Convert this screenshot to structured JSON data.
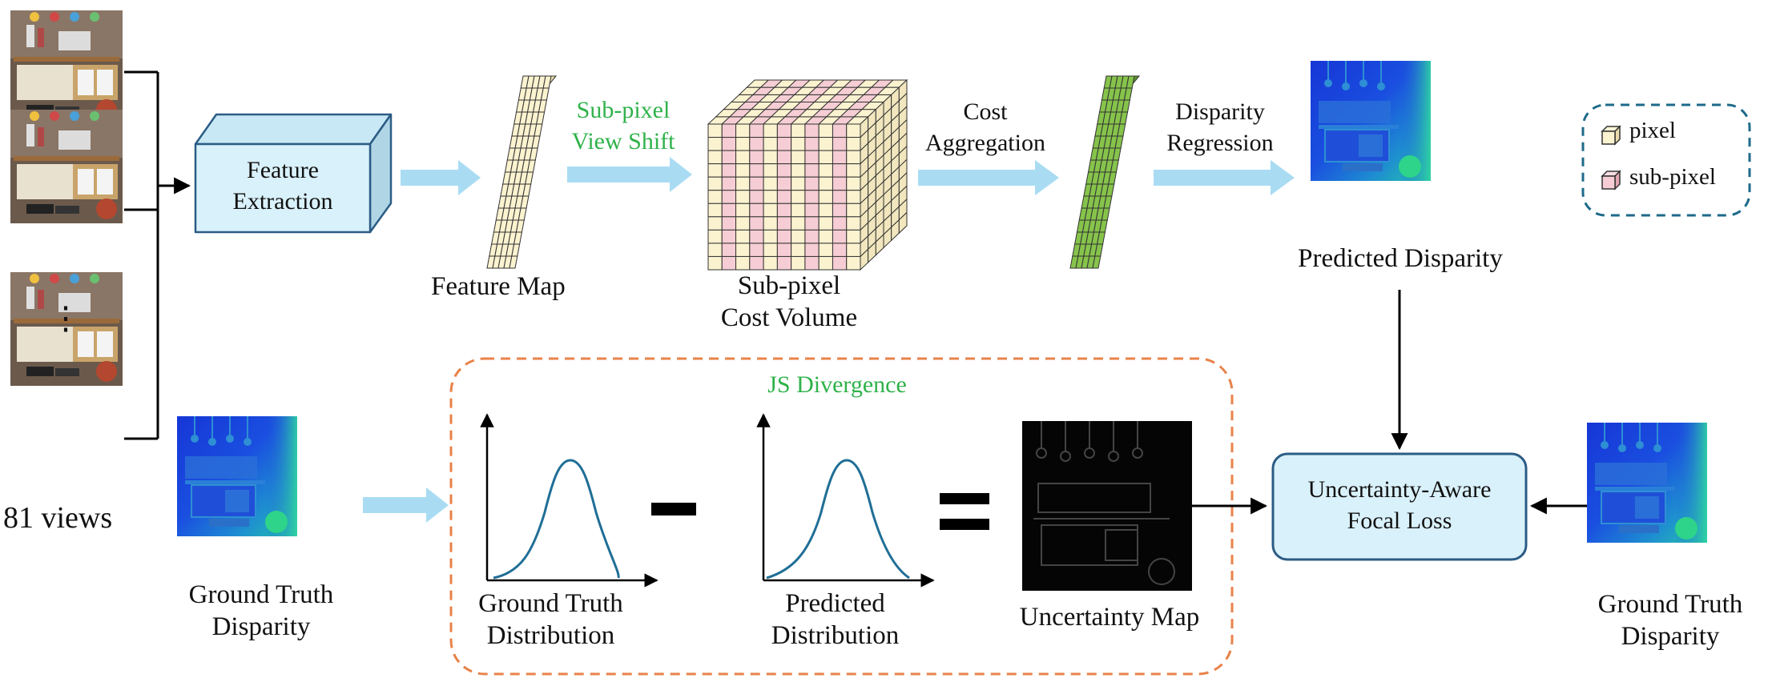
{
  "colors": {
    "arrow_light_blue": "#a9dcf3",
    "box_fill": "#d9f1fa",
    "box_stroke": "#2b5c85",
    "grid_cream": "#fbf2cf",
    "grid_pink": "#f6cdd4",
    "grid_green": "#86c34b",
    "curve_blue": "#1f6e96",
    "annotation_green": "#2fb24a",
    "dashed_orange": "#e8834a",
    "dashed_teal": "#1e6a8a"
  },
  "inputs": {
    "views_label": "81 views",
    "ellipsis": "⋮",
    "thumbnail_icon": "scene-photo-icon"
  },
  "pipeline": {
    "feature_extraction": "Feature\nExtraction",
    "feature_map": "Feature Map",
    "view_shift": "Sub-pixel\nView Shift",
    "cost_volume": "Sub-pixel\nCost Volume",
    "cost_aggregation": "Cost\nAggregation",
    "disparity_regression": "Disparity\nRegression",
    "predicted_disparity": "Predicted Disparity"
  },
  "legend": {
    "pixel": "pixel",
    "sub_pixel": "sub-pixel"
  },
  "loss": {
    "gt_disparity_left": "Ground Truth\nDisparity",
    "js_divergence": "JS Divergence",
    "gt_distribution": "Ground Truth\nDistribution",
    "predicted_distribution": "Predicted\nDistribution",
    "minus_sign": "–",
    "equals_sign": "=",
    "uncertainty_map": "Uncertainty Map",
    "focal_loss": "Uncertainty-Aware\nFocal Loss",
    "gt_disparity_right": "Ground Truth\nDisparity"
  }
}
